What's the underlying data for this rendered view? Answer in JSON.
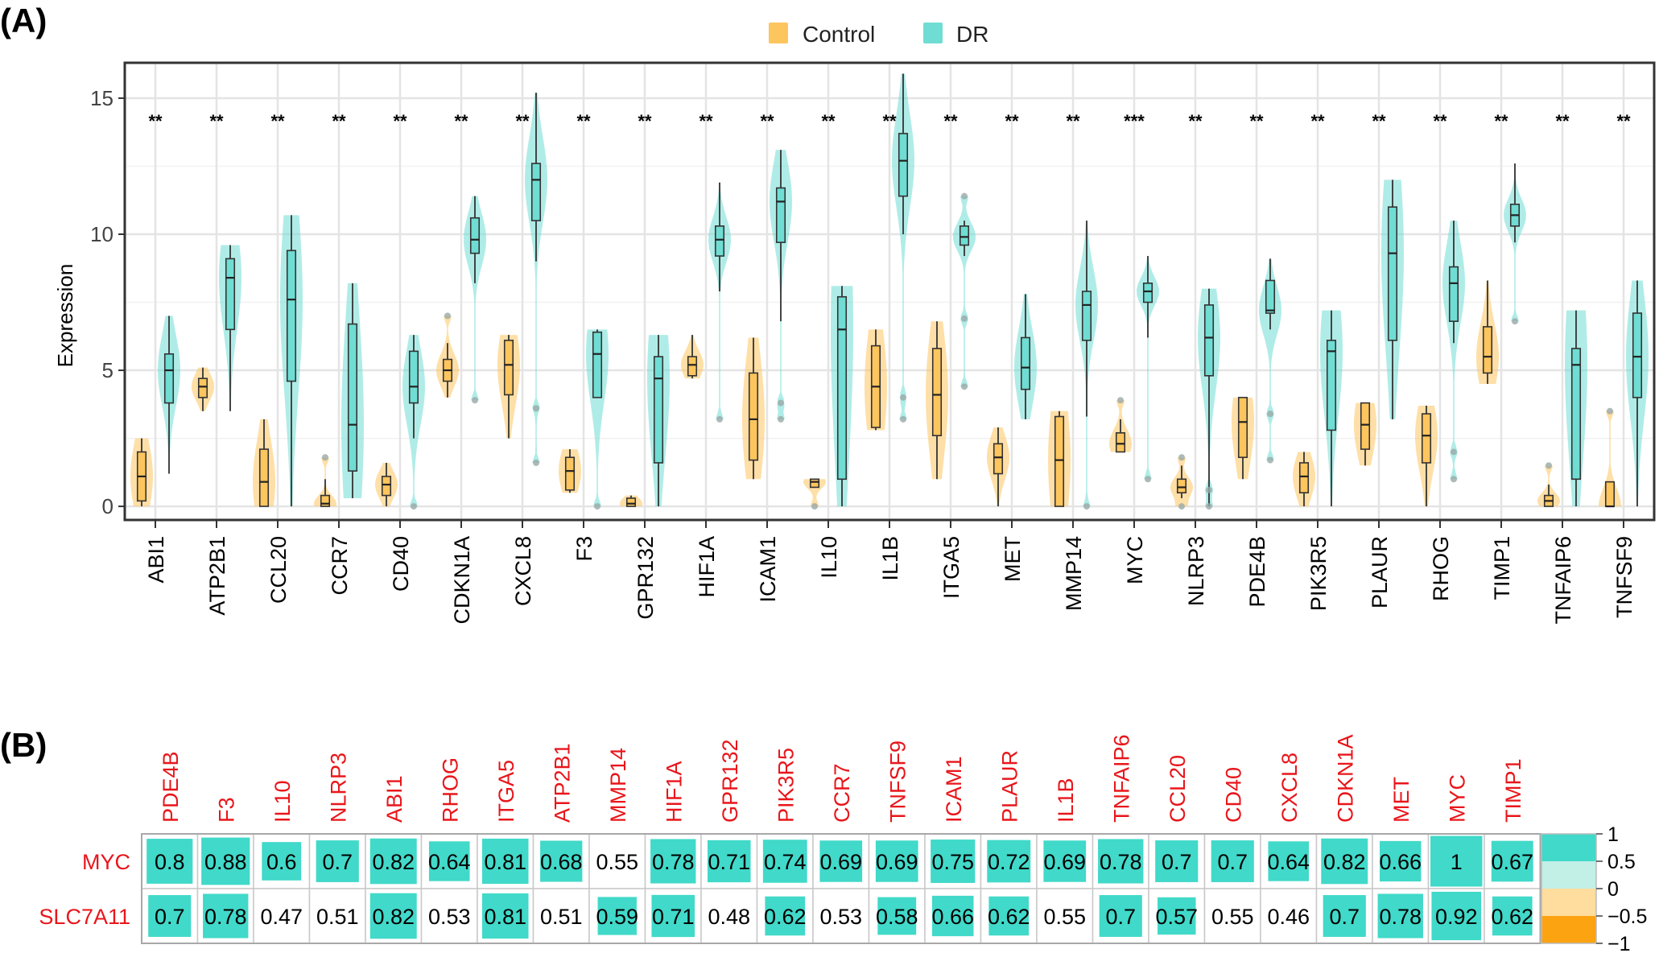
{
  "panel_a_label": "(A)",
  "panel_b_label": "(B)",
  "chart_data": [
    {
      "type": "boxplot-violin",
      "ylabel": "Expression",
      "ylim": [
        -0.5,
        16.3
      ],
      "yticks": [
        "0",
        "5",
        "10",
        "15"
      ],
      "legend": [
        {
          "name": "Control",
          "color": "#FDC55E"
        },
        {
          "name": "DR",
          "color": "#6FDDD3"
        }
      ],
      "legend_position": "top-center",
      "grid": true,
      "genes": [
        {
          "gene": "ABI1",
          "sig": "**",
          "control": {
            "min": 0.0,
            "q1": 0.2,
            "med": 1.1,
            "q3": 2.0,
            "max": 2.5,
            "out": []
          },
          "dr": {
            "min": 1.2,
            "q1": 3.8,
            "med": 5.0,
            "q3": 5.6,
            "max": 7.0,
            "out": []
          }
        },
        {
          "gene": "ATP2B1",
          "sig": "**",
          "control": {
            "min": 3.5,
            "q1": 4.0,
            "med": 4.4,
            "q3": 4.7,
            "max": 5.1,
            "out": []
          },
          "dr": {
            "min": 3.5,
            "q1": 6.5,
            "med": 8.4,
            "q3": 9.1,
            "max": 9.6,
            "out": []
          }
        },
        {
          "gene": "CCL20",
          "sig": "**",
          "control": {
            "min": 0.0,
            "q1": 0.0,
            "med": 0.9,
            "q3": 2.1,
            "max": 3.2,
            "out": []
          },
          "dr": {
            "min": 0.0,
            "q1": 4.6,
            "med": 7.6,
            "q3": 9.4,
            "max": 10.7,
            "out": []
          }
        },
        {
          "gene": "CCR7",
          "sig": "**",
          "control": {
            "min": 0.0,
            "q1": 0.0,
            "med": 0.1,
            "q3": 0.4,
            "max": 1.0,
            "out": [
              1.8
            ]
          },
          "dr": {
            "min": 0.3,
            "q1": 1.3,
            "med": 3.0,
            "q3": 6.7,
            "max": 8.2,
            "out": []
          }
        },
        {
          "gene": "CD40",
          "sig": "**",
          "control": {
            "min": 0.0,
            "q1": 0.4,
            "med": 0.8,
            "q3": 1.1,
            "max": 1.6,
            "out": []
          },
          "dr": {
            "min": 2.5,
            "q1": 3.8,
            "med": 4.4,
            "q3": 5.7,
            "max": 6.3,
            "out": [
              0.0
            ]
          }
        },
        {
          "gene": "CDKN1A",
          "sig": "**",
          "control": {
            "min": 4.0,
            "q1": 4.6,
            "med": 5.0,
            "q3": 5.4,
            "max": 6.0,
            "out": [
              7.0
            ]
          },
          "dr": {
            "min": 8.2,
            "q1": 9.3,
            "med": 9.8,
            "q3": 10.6,
            "max": 11.4,
            "out": [
              3.9
            ]
          }
        },
        {
          "gene": "CXCL8",
          "sig": "**",
          "control": {
            "min": 2.5,
            "q1": 4.1,
            "med": 5.2,
            "q3": 6.1,
            "max": 6.3,
            "out": []
          },
          "dr": {
            "min": 9.0,
            "q1": 10.5,
            "med": 12.0,
            "q3": 12.6,
            "max": 15.2,
            "out": [
              3.6,
              1.6
            ]
          }
        },
        {
          "gene": "F3",
          "sig": "**",
          "control": {
            "min": 0.5,
            "q1": 0.6,
            "med": 1.3,
            "q3": 1.8,
            "max": 2.1,
            "out": []
          },
          "dr": {
            "min": 4.0,
            "q1": 4.0,
            "med": 5.6,
            "q3": 6.4,
            "max": 6.5,
            "out": [
              0.0
            ]
          }
        },
        {
          "gene": "GPR132",
          "sig": "**",
          "control": {
            "min": 0.0,
            "q1": 0.0,
            "med": 0.1,
            "q3": 0.3,
            "max": 0.4,
            "out": []
          },
          "dr": {
            "min": 0.0,
            "q1": 1.6,
            "med": 4.7,
            "q3": 5.5,
            "max": 6.3,
            "out": []
          }
        },
        {
          "gene": "HIF1A",
          "sig": "**",
          "control": {
            "min": 4.7,
            "q1": 4.8,
            "med": 5.2,
            "q3": 5.5,
            "max": 6.3,
            "out": []
          },
          "dr": {
            "min": 7.9,
            "q1": 9.2,
            "med": 9.8,
            "q3": 10.3,
            "max": 11.9,
            "out": [
              3.2
            ]
          }
        },
        {
          "gene": "ICAM1",
          "sig": "**",
          "control": {
            "min": 1.0,
            "q1": 1.7,
            "med": 3.2,
            "q3": 4.9,
            "max": 6.2,
            "out": []
          },
          "dr": {
            "min": 6.8,
            "q1": 9.7,
            "med": 11.2,
            "q3": 11.7,
            "max": 13.1,
            "out": [
              3.8,
              3.2
            ]
          }
        },
        {
          "gene": "IL10",
          "sig": "**",
          "control": {
            "min": 0.7,
            "q1": 0.7,
            "med": 0.9,
            "q3": 1.0,
            "max": 1.0,
            "out": [
              0.0
            ]
          },
          "dr": {
            "min": 0.0,
            "q1": 1.0,
            "med": 6.5,
            "q3": 7.7,
            "max": 8.1,
            "out": []
          }
        },
        {
          "gene": "IL1B",
          "sig": "**",
          "control": {
            "min": 2.8,
            "q1": 2.9,
            "med": 4.4,
            "q3": 5.9,
            "max": 6.5,
            "out": []
          },
          "dr": {
            "min": 10.0,
            "q1": 11.4,
            "med": 12.7,
            "q3": 13.7,
            "max": 15.9,
            "out": [
              4.0,
              3.2
            ]
          }
        },
        {
          "gene": "ITGA5",
          "sig": "**",
          "control": {
            "min": 1.0,
            "q1": 2.6,
            "med": 4.1,
            "q3": 5.8,
            "max": 6.8,
            "out": []
          },
          "dr": {
            "min": 9.2,
            "q1": 9.6,
            "med": 9.9,
            "q3": 10.3,
            "max": 10.5,
            "out": [
              11.4,
              6.9,
              4.4
            ]
          }
        },
        {
          "gene": "MET",
          "sig": "**",
          "control": {
            "min": 0.0,
            "q1": 1.2,
            "med": 1.8,
            "q3": 2.3,
            "max": 2.9,
            "out": []
          },
          "dr": {
            "min": 3.2,
            "q1": 4.3,
            "med": 5.1,
            "q3": 6.2,
            "max": 7.8,
            "out": []
          }
        },
        {
          "gene": "MMP14",
          "sig": "**",
          "control": {
            "min": 0.0,
            "q1": 0.0,
            "med": 1.7,
            "q3": 3.3,
            "max": 3.5,
            "out": []
          },
          "dr": {
            "min": 3.3,
            "q1": 6.1,
            "med": 7.4,
            "q3": 7.9,
            "max": 10.5,
            "out": [
              0.0
            ]
          }
        },
        {
          "gene": "MYC",
          "sig": "***",
          "control": {
            "min": 2.0,
            "q1": 2.0,
            "med": 2.3,
            "q3": 2.7,
            "max": 3.2,
            "out": [
              3.9
            ]
          },
          "dr": {
            "min": 6.2,
            "q1": 7.5,
            "med": 7.9,
            "q3": 8.2,
            "max": 9.2,
            "out": [
              1.0
            ]
          }
        },
        {
          "gene": "NLRP3",
          "sig": "**",
          "control": {
            "min": 0.3,
            "q1": 0.5,
            "med": 0.7,
            "q3": 1.0,
            "max": 1.5,
            "out": [
              1.8,
              0.0
            ]
          },
          "dr": {
            "min": 0.0,
            "q1": 4.8,
            "med": 6.2,
            "q3": 7.4,
            "max": 8.0,
            "out": [
              0.6,
              0.0
            ]
          }
        },
        {
          "gene": "PDE4B",
          "sig": "**",
          "control": {
            "min": 1.0,
            "q1": 1.8,
            "med": 3.1,
            "q3": 4.0,
            "max": 4.0,
            "out": []
          },
          "dr": {
            "min": 6.5,
            "q1": 7.1,
            "med": 7.2,
            "q3": 8.3,
            "max": 9.1,
            "out": [
              3.4,
              1.7
            ]
          }
        },
        {
          "gene": "PIK3R5",
          "sig": "**",
          "control": {
            "min": 0.0,
            "q1": 0.5,
            "med": 1.1,
            "q3": 1.6,
            "max": 2.0,
            "out": []
          },
          "dr": {
            "min": 0.0,
            "q1": 2.8,
            "med": 5.7,
            "q3": 6.1,
            "max": 7.2,
            "out": []
          }
        },
        {
          "gene": "PLAUR",
          "sig": "**",
          "control": {
            "min": 1.5,
            "q1": 2.1,
            "med": 3.0,
            "q3": 3.8,
            "max": 3.8,
            "out": []
          },
          "dr": {
            "min": 3.2,
            "q1": 6.1,
            "med": 9.3,
            "q3": 11.0,
            "max": 12.0,
            "out": []
          }
        },
        {
          "gene": "RHOG",
          "sig": "**",
          "control": {
            "min": 0.0,
            "q1": 1.6,
            "med": 2.6,
            "q3": 3.4,
            "max": 3.7,
            "out": []
          },
          "dr": {
            "min": 6.0,
            "q1": 6.8,
            "med": 8.2,
            "q3": 8.8,
            "max": 10.5,
            "out": [
              2.0,
              1.0
            ]
          }
        },
        {
          "gene": "TIMP1",
          "sig": "**",
          "control": {
            "min": 4.5,
            "q1": 4.9,
            "med": 5.5,
            "q3": 6.6,
            "max": 8.3,
            "out": []
          },
          "dr": {
            "min": 9.7,
            "q1": 10.3,
            "med": 10.7,
            "q3": 11.1,
            "max": 12.6,
            "out": [
              6.8
            ]
          }
        },
        {
          "gene": "TNFAIP6",
          "sig": "**",
          "control": {
            "min": 0.0,
            "q1": 0.0,
            "med": 0.2,
            "q3": 0.4,
            "max": 0.8,
            "out": [
              1.5
            ]
          },
          "dr": {
            "min": 0.0,
            "q1": 1.0,
            "med": 5.2,
            "q3": 5.8,
            "max": 7.2,
            "out": []
          }
        },
        {
          "gene": "TNFSF9",
          "sig": "**",
          "control": {
            "min": 0.0,
            "q1": 0.0,
            "med": 0.0,
            "q3": 0.9,
            "max": 0.9,
            "out": [
              3.5
            ]
          },
          "dr": {
            "min": 0.0,
            "q1": 4.0,
            "med": 5.5,
            "q3": 7.1,
            "max": 8.3,
            "out": []
          }
        }
      ]
    },
    {
      "type": "heatmap",
      "columns": [
        "PDE4B",
        "F3",
        "IL10",
        "NLRP3",
        "ABI1",
        "RHOG",
        "ITGA5",
        "ATP2B1",
        "MMP14",
        "HIF1A",
        "GPR132",
        "PIK3R5",
        "CCR7",
        "TNFSF9",
        "ICAM1",
        "PLAUR",
        "IL1B",
        "TNFAIP6",
        "CCL20",
        "CD40",
        "CXCL8",
        "CDKN1A",
        "MET",
        "MYC",
        "TIMP1"
      ],
      "rows": [
        {
          "name": "MYC",
          "values": [
            0.8,
            0.88,
            0.6,
            0.7,
            0.82,
            0.64,
            0.81,
            0.68,
            0.55,
            0.78,
            0.71,
            0.74,
            0.69,
            0.69,
            0.75,
            0.72,
            0.69,
            0.78,
            0.7,
            0.7,
            0.64,
            0.82,
            0.66,
            1,
            0.67
          ],
          "labels": [
            "0.8",
            "0.88",
            "0.6",
            "0.7",
            "0.82",
            "0.64",
            "0.81",
            "0.68",
            "0.55",
            "0.78",
            "0.71",
            "0.74",
            "0.69",
            "0.69",
            "0.75",
            "0.72",
            "0.69",
            "0.78",
            "0.7",
            "0.7",
            "0.64",
            "0.82",
            "0.66",
            "1",
            "0.67"
          ],
          "significant": [
            true,
            true,
            true,
            true,
            true,
            true,
            true,
            true,
            false,
            true,
            true,
            true,
            true,
            true,
            true,
            true,
            true,
            true,
            true,
            true,
            true,
            true,
            true,
            true,
            true
          ]
        },
        {
          "name": "SLC7A11",
          "values": [
            0.7,
            0.78,
            0.47,
            0.51,
            0.82,
            0.53,
            0.81,
            0.51,
            0.59,
            0.71,
            0.48,
            0.62,
            0.53,
            0.58,
            0.66,
            0.62,
            0.55,
            0.7,
            0.57,
            0.55,
            0.46,
            0.7,
            0.78,
            0.92,
            0.62
          ],
          "labels": [
            "0.7",
            "0.78",
            "0.47",
            "0.51",
            "0.82",
            "0.53",
            "0.81",
            "0.51",
            "0.59",
            "0.71",
            "0.48",
            "0.62",
            "0.53",
            "0.58",
            "0.66",
            "0.62",
            "0.55",
            "0.7",
            "0.57",
            "0.55",
            "0.46",
            "0.7",
            "0.78",
            "0.92",
            "0.62"
          ],
          "significant": [
            true,
            true,
            false,
            false,
            true,
            false,
            true,
            false,
            true,
            true,
            false,
            true,
            false,
            true,
            true,
            true,
            false,
            true,
            true,
            false,
            false,
            true,
            true,
            true,
            true
          ]
        }
      ],
      "colorbar": {
        "ticks": [
          "1",
          "0.5",
          "0",
          "−0.5",
          "−1"
        ],
        "colors": {
          "high": "#41D9C9",
          "mid_high": "#C2EFE6",
          "mid_low": "#FEDD9E",
          "low": "#FCA311"
        }
      }
    }
  ]
}
